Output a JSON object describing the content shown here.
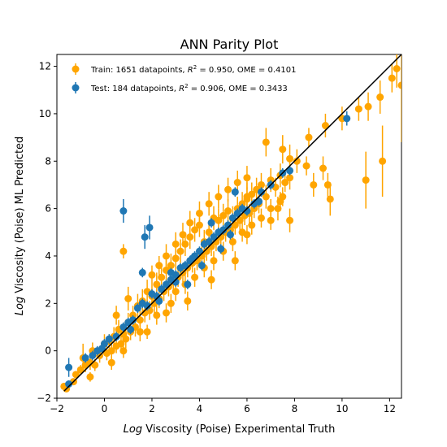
{
  "chart_data": {
    "type": "scatter",
    "title": "ANN Parity Plot",
    "xlabel_prefix": "Log",
    "xlabel_rest": " Viscosity (Poise) Experimental Truth",
    "ylabel_prefix": "Log",
    "ylabel_rest": " Viscosity (Poise) ML Predicted",
    "xlim": [
      -2,
      12.5
    ],
    "ylim": [
      -2,
      12.5
    ],
    "xticks": [
      -2,
      0,
      2,
      4,
      6,
      8,
      10,
      12
    ],
    "yticks": [
      -2,
      0,
      2,
      4,
      6,
      8,
      10,
      12
    ],
    "grid": false,
    "legend_position": "upper-left",
    "parity_line": [
      [
        -1.7,
        -1.7
      ],
      [
        12.5,
        12.5
      ]
    ],
    "series": [
      {
        "name": "Train",
        "legend_parts": [
          "Train: 1651 datapoints, ",
          "R",
          "2",
          " = 0.950, OME = 0.4101"
        ],
        "color": "#ffa500",
        "points": [
          [
            -1.7,
            -1.5,
            0.1
          ],
          [
            -1.6,
            -1.6,
            0.1
          ],
          [
            -1.3,
            -1.3,
            0.1
          ],
          [
            -1.2,
            -1.0,
            0.15
          ],
          [
            -1.0,
            -0.8,
            0.2
          ],
          [
            -0.8,
            -0.6,
            0.3
          ],
          [
            -0.9,
            -0.3,
            0.6
          ],
          [
            -0.6,
            -0.5,
            0.3
          ],
          [
            -0.5,
            0.0,
            0.35
          ],
          [
            -0.4,
            -0.6,
            0.25
          ],
          [
            -0.2,
            -0.2,
            0.3
          ],
          [
            0.0,
            0.3,
            0.4
          ],
          [
            0.1,
            -0.1,
            0.3
          ],
          [
            0.2,
            0.4,
            0.3
          ],
          [
            0.3,
            0.0,
            0.35
          ],
          [
            0.4,
            0.6,
            0.4
          ],
          [
            0.5,
            0.2,
            0.3
          ],
          [
            0.6,
            0.9,
            0.4
          ],
          [
            0.7,
            0.3,
            0.35
          ],
          [
            0.8,
            0.7,
            0.3
          ],
          [
            0.9,
            0.5,
            0.4
          ],
          [
            1.0,
            1.2,
            0.4
          ],
          [
            1.1,
            0.8,
            0.35
          ],
          [
            1.2,
            1.5,
            0.4
          ],
          [
            1.3,
            1.0,
            0.4
          ],
          [
            1.4,
            1.9,
            0.5
          ],
          [
            1.5,
            1.3,
            0.4
          ],
          [
            1.6,
            2.1,
            0.5
          ],
          [
            1.7,
            1.6,
            0.4
          ],
          [
            1.8,
            2.5,
            0.5
          ],
          [
            1.9,
            1.7,
            0.4
          ],
          [
            2.0,
            2.3,
            0.5
          ],
          [
            2.1,
            2.0,
            0.4
          ],
          [
            2.2,
            2.8,
            0.5
          ],
          [
            2.3,
            2.2,
            0.4
          ],
          [
            2.4,
            3.1,
            0.5
          ],
          [
            2.5,
            2.5,
            0.4
          ],
          [
            2.6,
            3.4,
            0.5
          ],
          [
            2.7,
            2.7,
            0.4
          ],
          [
            2.8,
            3.6,
            0.5
          ],
          [
            2.9,
            2.9,
            0.4
          ],
          [
            3.0,
            3.9,
            0.5
          ],
          [
            3.1,
            3.1,
            0.4
          ],
          [
            3.2,
            4.2,
            0.5
          ],
          [
            3.3,
            3.3,
            0.4
          ],
          [
            3.4,
            4.5,
            0.5
          ],
          [
            3.5,
            3.5,
            0.4
          ],
          [
            3.6,
            4.8,
            0.5
          ],
          [
            3.7,
            3.7,
            0.4
          ],
          [
            3.8,
            5.1,
            0.5
          ],
          [
            3.9,
            3.8,
            0.4
          ],
          [
            4.0,
            5.3,
            0.5
          ],
          [
            4.1,
            4.0,
            0.4
          ],
          [
            4.2,
            4.6,
            0.5
          ],
          [
            4.3,
            4.2,
            0.4
          ],
          [
            4.4,
            5.0,
            0.5
          ],
          [
            4.5,
            4.4,
            0.4
          ],
          [
            4.6,
            5.6,
            0.5
          ],
          [
            4.7,
            4.6,
            0.4
          ],
          [
            4.8,
            5.5,
            0.5
          ],
          [
            4.9,
            4.8,
            0.4
          ],
          [
            5.0,
            5.7,
            0.5
          ],
          [
            5.1,
            5.0,
            0.4
          ],
          [
            5.2,
            5.9,
            0.5
          ],
          [
            5.3,
            5.1,
            0.4
          ],
          [
            5.4,
            5.6,
            0.5
          ],
          [
            5.5,
            5.3,
            0.4
          ],
          [
            5.6,
            6.0,
            0.5
          ],
          [
            5.7,
            5.5,
            0.4
          ],
          [
            5.8,
            6.2,
            0.5
          ],
          [
            5.9,
            5.7,
            0.4
          ],
          [
            6.0,
            6.4,
            0.5
          ],
          [
            6.1,
            5.8,
            0.4
          ],
          [
            6.2,
            6.6,
            0.5
          ],
          [
            6.3,
            6.0,
            0.4
          ],
          [
            6.4,
            6.8,
            0.5
          ],
          [
            6.5,
            6.2,
            0.4
          ],
          [
            6.6,
            7.0,
            0.5
          ],
          [
            6.8,
            6.5,
            0.5
          ],
          [
            7.0,
            7.2,
            0.5
          ],
          [
            7.2,
            6.9,
            0.4
          ],
          [
            7.4,
            7.4,
            0.5
          ],
          [
            7.6,
            7.1,
            0.4
          ],
          [
            7.8,
            7.3,
            0.5
          ],
          [
            3.0,
            2.5,
            0.4
          ],
          [
            3.4,
            2.8,
            0.4
          ],
          [
            3.8,
            3.1,
            0.4
          ],
          [
            4.2,
            3.5,
            0.4
          ],
          [
            4.6,
            3.8,
            0.4
          ],
          [
            5.0,
            4.2,
            0.4
          ],
          [
            5.4,
            4.6,
            0.4
          ],
          [
            5.8,
            5.0,
            0.4
          ],
          [
            6.2,
            5.3,
            0.4
          ],
          [
            6.6,
            5.6,
            0.4
          ],
          [
            7.0,
            6.0,
            0.4
          ],
          [
            7.4,
            6.3,
            0.4
          ],
          [
            2.0,
            3.2,
            0.4
          ],
          [
            2.3,
            3.6,
            0.4
          ],
          [
            2.6,
            4.0,
            0.5
          ],
          [
            3.0,
            4.5,
            0.5
          ],
          [
            3.3,
            4.9,
            0.5
          ],
          [
            3.6,
            5.4,
            0.5
          ],
          [
            4.0,
            5.8,
            0.5
          ],
          [
            4.4,
            6.2,
            0.5
          ],
          [
            4.8,
            6.5,
            0.5
          ],
          [
            5.2,
            6.8,
            0.5
          ],
          [
            5.6,
            7.1,
            0.5
          ],
          [
            6.0,
            7.3,
            0.5
          ],
          [
            0.5,
            1.5,
            0.4
          ],
          [
            1.0,
            2.2,
            0.5
          ],
          [
            0.8,
            0.0,
            0.3
          ],
          [
            1.5,
            0.8,
            0.4
          ],
          [
            2.2,
            1.5,
            0.4
          ],
          [
            2.8,
            2.0,
            0.4
          ],
          [
            0.8,
            4.2,
            0.3
          ],
          [
            6.8,
            8.8,
            0.6
          ],
          [
            6.0,
            6.5,
            0.6
          ],
          [
            7.5,
            8.5,
            0.6
          ],
          [
            7.8,
            8.1,
            0.6
          ],
          [
            8.1,
            8.0,
            0.5
          ],
          [
            8.6,
            9.0,
            0.4
          ],
          [
            9.3,
            9.5,
            0.5
          ],
          [
            8.5,
            7.8,
            0.4
          ],
          [
            7.3,
            6.0,
            0.5
          ],
          [
            7.0,
            5.5,
            0.4
          ],
          [
            8.8,
            7.0,
            0.5
          ],
          [
            9.2,
            7.7,
            0.5
          ],
          [
            9.4,
            7.0,
            0.5
          ],
          [
            9.5,
            6.4,
            0.7
          ],
          [
            11.0,
            7.2,
            1.2
          ],
          [
            11.7,
            8.0,
            1.5
          ],
          [
            10.7,
            10.2,
            0.5
          ],
          [
            11.1,
            10.3,
            0.6
          ],
          [
            11.6,
            10.7,
            0.7
          ],
          [
            12.1,
            11.5,
            0.6
          ],
          [
            12.3,
            11.9,
            0.8
          ],
          [
            12.5,
            11.2,
            2.4
          ],
          [
            10.0,
            9.8,
            0.5
          ],
          [
            7.8,
            5.5,
            0.5
          ],
          [
            7.5,
            6.5,
            0.4
          ],
          [
            5.5,
            3.8,
            0.4
          ],
          [
            6.0,
            4.9,
            0.4
          ],
          [
            4.5,
            3.0,
            0.4
          ],
          [
            3.5,
            2.1,
            0.4
          ],
          [
            2.6,
            1.6,
            0.4
          ],
          [
            1.8,
            0.8,
            0.3
          ],
          [
            0.3,
            -0.5,
            0.3
          ],
          [
            -0.6,
            -1.1,
            0.2
          ]
        ]
      },
      {
        "name": "Test",
        "legend_parts": [
          "Test: 184 datapoints, ",
          "R",
          "2",
          " = 0.906, OME = 0.3433"
        ],
        "color": "#1f77b4",
        "points": [
          [
            -1.5,
            -1.4,
            0.15
          ],
          [
            -1.5,
            -0.7,
            0.4
          ],
          [
            -0.8,
            -0.3,
            0.2
          ],
          [
            -0.5,
            -0.2,
            0.2
          ],
          [
            -0.3,
            0.0,
            0.2
          ],
          [
            0.0,
            0.3,
            0.2
          ],
          [
            0.2,
            0.5,
            0.2
          ],
          [
            0.5,
            0.6,
            0.2
          ],
          [
            0.8,
            1.0,
            0.2
          ],
          [
            1.0,
            1.2,
            0.2
          ],
          [
            1.2,
            1.3,
            0.2
          ],
          [
            1.4,
            1.8,
            0.2
          ],
          [
            1.6,
            2.0,
            0.2
          ],
          [
            1.8,
            1.9,
            0.2
          ],
          [
            2.0,
            2.4,
            0.2
          ],
          [
            2.2,
            2.3,
            0.2
          ],
          [
            2.4,
            2.6,
            0.2
          ],
          [
            2.6,
            2.8,
            0.2
          ],
          [
            2.8,
            3.0,
            0.2
          ],
          [
            3.0,
            3.2,
            0.2
          ],
          [
            3.2,
            3.5,
            0.2
          ],
          [
            3.4,
            3.6,
            0.2
          ],
          [
            3.6,
            3.8,
            0.2
          ],
          [
            3.8,
            4.0,
            0.2
          ],
          [
            4.0,
            4.2,
            0.2
          ],
          [
            4.2,
            4.5,
            0.2
          ],
          [
            4.4,
            4.6,
            0.2
          ],
          [
            4.6,
            4.8,
            0.2
          ],
          [
            4.8,
            5.0,
            0.2
          ],
          [
            5.0,
            5.1,
            0.2
          ],
          [
            5.2,
            5.3,
            0.2
          ],
          [
            5.4,
            5.6,
            0.2
          ],
          [
            5.6,
            5.8,
            0.2
          ],
          [
            5.8,
            6.0,
            0.2
          ],
          [
            6.0,
            5.9,
            0.2
          ],
          [
            6.3,
            6.2,
            0.2
          ],
          [
            6.6,
            6.7,
            0.2
          ],
          [
            7.0,
            7.0,
            0.2
          ],
          [
            7.5,
            7.5,
            0.2
          ],
          [
            7.8,
            7.6,
            0.2
          ],
          [
            0.8,
            5.9,
            0.5
          ],
          [
            1.7,
            4.8,
            0.5
          ],
          [
            1.9,
            5.2,
            0.5
          ],
          [
            1.6,
            3.3,
            0.2
          ],
          [
            2.8,
            3.3,
            0.2
          ],
          [
            3.5,
            2.8,
            0.2
          ],
          [
            4.5,
            5.4,
            0.2
          ],
          [
            5.5,
            6.7,
            0.2
          ],
          [
            10.2,
            9.8,
            0.3
          ],
          [
            3.0,
            2.9,
            0.2
          ],
          [
            4.1,
            3.6,
            0.2
          ],
          [
            4.9,
            4.3,
            0.2
          ],
          [
            5.3,
            4.9,
            0.2
          ],
          [
            6.5,
            6.3,
            0.2
          ],
          [
            2.3,
            2.1,
            0.2
          ],
          [
            1.1,
            0.9,
            0.2
          ],
          [
            -0.1,
            0.1,
            0.2
          ],
          [
            3.7,
            3.9,
            0.2
          ]
        ]
      }
    ]
  }
}
